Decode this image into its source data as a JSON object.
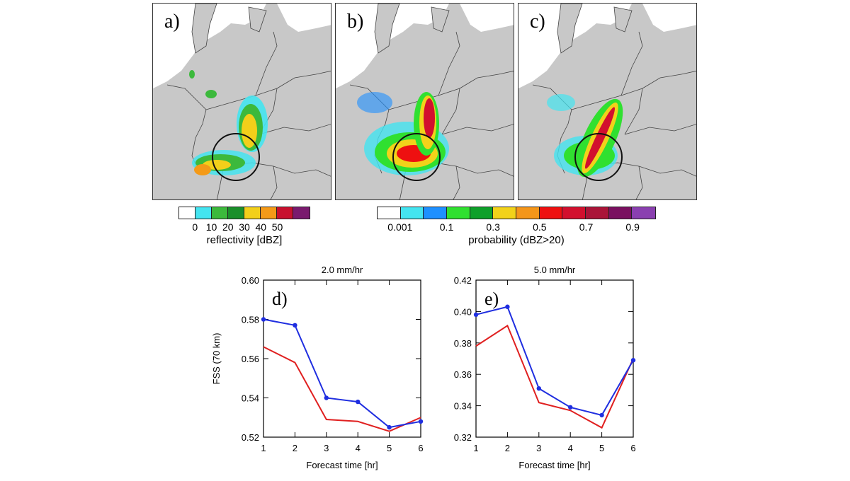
{
  "panels": [
    {
      "letter": "a)"
    },
    {
      "letter": "b)"
    },
    {
      "letter": "c)"
    }
  ],
  "colorbars": {
    "reflectivity": {
      "label": "reflectivity [dBZ]",
      "colors": [
        "#ffffff",
        "#44e4f0",
        "#3cb93c",
        "#1a8f2a",
        "#f2cf1a",
        "#f49a18",
        "#c8102e",
        "#7a1a6e"
      ],
      "ticks": [
        "0",
        "10",
        "20",
        "30",
        "40",
        "50"
      ]
    },
    "probability": {
      "label": "probability (dBZ>20)",
      "colors": [
        "#ffffff",
        "#44e4f0",
        "#1e90ff",
        "#30e030",
        "#0ea02a",
        "#f2d21a",
        "#f4961a",
        "#ee1010",
        "#d2102e",
        "#aa1438",
        "#7a1060",
        "#8a40b0"
      ],
      "ticks": [
        "0.001",
        "0.1",
        "0.3",
        "0.5",
        "0.7",
        "0.9"
      ]
    }
  },
  "chart_data": [
    {
      "type": "line",
      "panel": "d)",
      "title": "2.0 mm/hr",
      "xlabel": "Forecast time [hr]",
      "ylabel": "FSS (70 km)",
      "x": [
        1,
        2,
        3,
        4,
        5,
        6
      ],
      "xlim": [
        1,
        6
      ],
      "ylim": [
        0.52,
        0.6
      ],
      "yticks": [
        "0.52",
        "0.54",
        "0.56",
        "0.58",
        "0.60"
      ],
      "xticks": [
        "1",
        "2",
        "3",
        "4",
        "5",
        "6"
      ],
      "series": [
        {
          "color": "#1f2ee0",
          "markers": true,
          "values": [
            0.58,
            0.577,
            0.54,
            0.538,
            0.525,
            0.528
          ]
        },
        {
          "color": "#e02020",
          "markers": false,
          "values": [
            0.566,
            0.558,
            0.529,
            0.528,
            0.523,
            0.53
          ]
        }
      ]
    },
    {
      "type": "line",
      "panel": "e)",
      "title": "5.0 mm/hr",
      "xlabel": "Forecast time [hr]",
      "ylabel": "",
      "x": [
        1,
        2,
        3,
        4,
        5,
        6
      ],
      "xlim": [
        1,
        6
      ],
      "ylim": [
        0.32,
        0.42
      ],
      "yticks": [
        "0.32",
        "0.34",
        "0.36",
        "0.38",
        "0.40",
        "0.42"
      ],
      "xticks": [
        "1",
        "2",
        "3",
        "4",
        "5",
        "6"
      ],
      "series": [
        {
          "color": "#1f2ee0",
          "markers": true,
          "values": [
            0.398,
            0.403,
            0.351,
            0.339,
            0.334,
            0.369
          ]
        },
        {
          "color": "#e02020",
          "markers": false,
          "values": [
            0.378,
            0.391,
            0.342,
            0.337,
            0.326,
            0.37
          ]
        }
      ]
    }
  ]
}
